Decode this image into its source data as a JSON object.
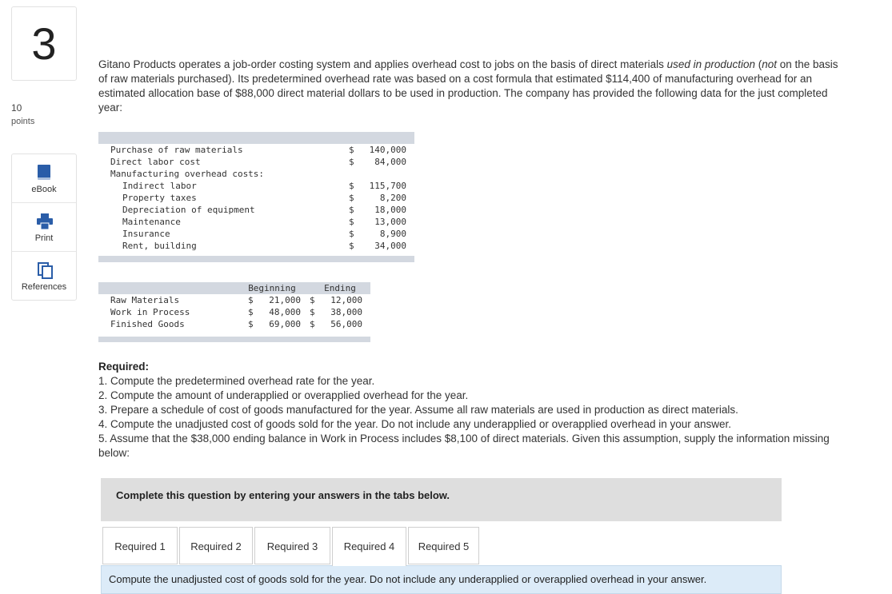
{
  "question": {
    "number": "3",
    "points_value": "10",
    "points_label": "points"
  },
  "sidebar": [
    "eBook",
    "Print",
    "References"
  ],
  "intro": [
    {
      "text": "Gitano Products operates a job-order costing system and applies overhead cost to jobs on the basis of direct materials ",
      "italic": false
    },
    {
      "text": "used in production",
      "italic": true
    },
    {
      "text": " (",
      "italic": false
    },
    {
      "text": "not",
      "italic": true
    },
    {
      "text": " on the basis of raw materials purchased). Its predetermined overhead rate was based on a cost formula that estimated $114,400 of manufacturing overhead for an estimated allocation base of $88,000 direct material dollars to be used in production. The company has provided the following data for the just completed year:",
      "italic": false
    }
  ],
  "cost_table": {
    "rows": [
      {
        "label": "Purchase of raw materials",
        "currency": "$",
        "amount": "140,000"
      },
      {
        "label": "Direct labor cost",
        "currency": "$",
        "amount": "84,000"
      }
    ],
    "overhead": {
      "label": "Manufacturing overhead costs:",
      "items": [
        {
          "label": "Indirect labor",
          "currency": "$",
          "amount": "115,700"
        },
        {
          "label": "Property taxes",
          "currency": "$",
          "amount": "8,200"
        },
        {
          "label": "Depreciation of equipment",
          "currency": "$",
          "amount": "18,000"
        },
        {
          "label": "Maintenance",
          "currency": "$",
          "amount": "13,000"
        },
        {
          "label": "Insurance",
          "currency": "$",
          "amount": "8,900"
        },
        {
          "label": "Rent, building",
          "currency": "$",
          "amount": "34,000"
        }
      ]
    }
  },
  "inventory_table": {
    "headers": [
      "Beginning",
      "Ending"
    ],
    "rows": [
      {
        "label": "Raw Materials",
        "cells": [
          "$",
          "21,000",
          "$",
          "12,000"
        ]
      },
      {
        "label": "Work in Process",
        "cells": [
          "$",
          "48,000",
          "$",
          "38,000"
        ]
      },
      {
        "label": "Finished Goods",
        "cells": [
          "$",
          "69,000",
          "$",
          "56,000"
        ]
      }
    ]
  },
  "required": {
    "title": "Required:",
    "items": [
      "1. Compute the predetermined overhead rate for the year.",
      "2. Compute the amount of underapplied or overapplied overhead for the year.",
      "3. Prepare a schedule of cost of goods manufactured for the year. Assume all raw materials are used in production as direct materials.",
      "4. Compute the unadjusted cost of goods sold for the year. Do not include any underapplied or overapplied overhead in your answer.",
      "5. Assume that the $38,000 ending balance in Work in Process includes $8,100 of direct materials. Given this assumption, supply the information missing below:"
    ]
  },
  "banner": "Complete this question by entering your answers in the tabs below.",
  "tabs": [
    "Required 1",
    "Required 2",
    "Required 3",
    "Required 4",
    "Required 5"
  ],
  "active_tab": 3,
  "tab_content": "Compute the unadjusted cost of goods sold for the year. Do not include any underapplied or overapplied overhead in your answer."
}
